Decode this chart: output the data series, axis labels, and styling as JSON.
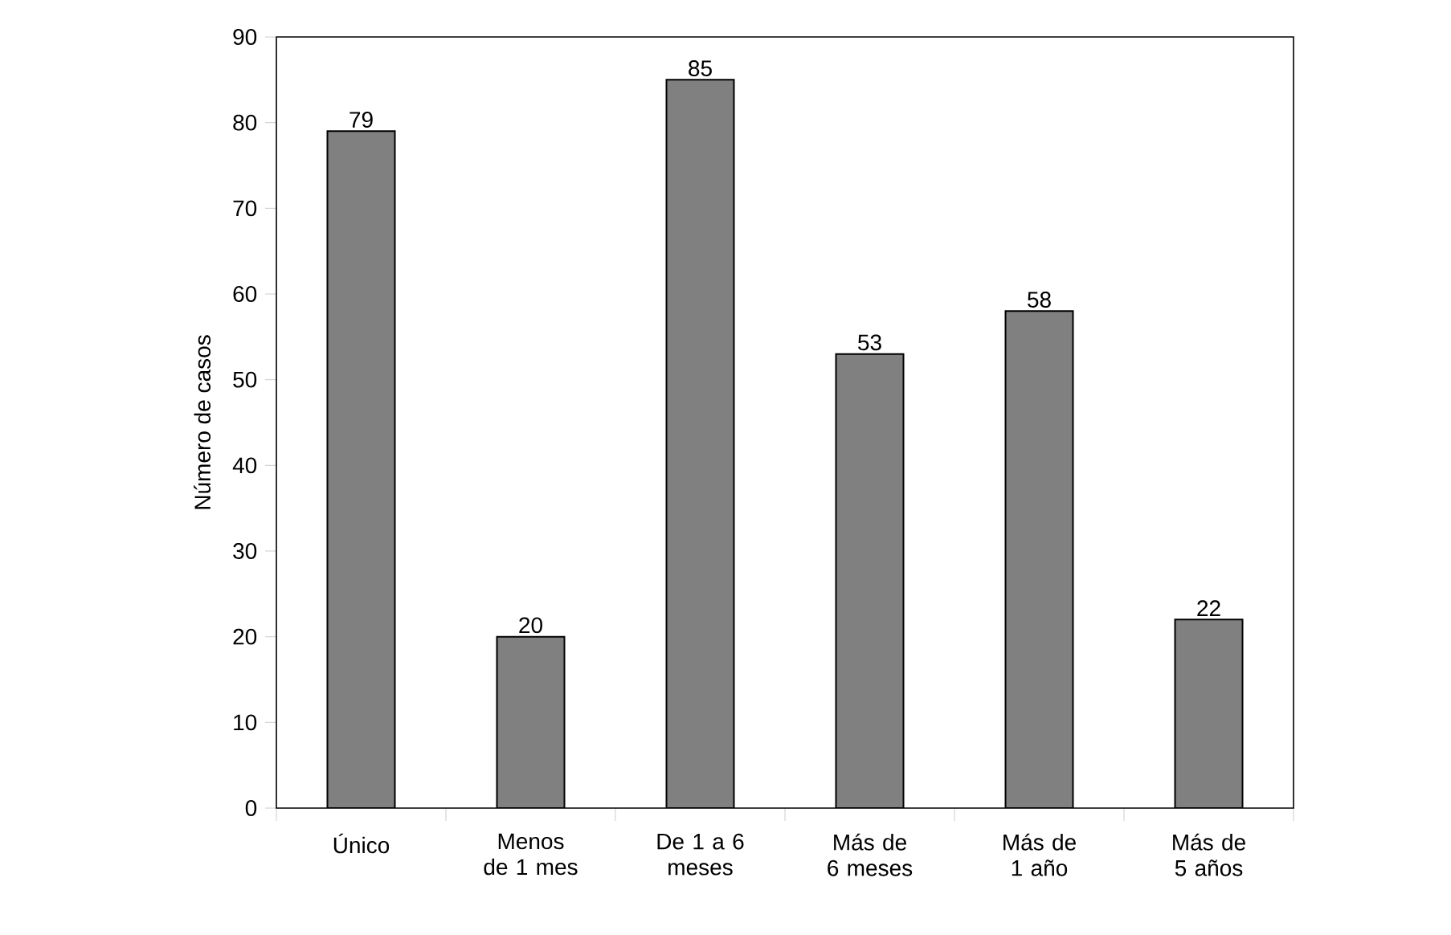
{
  "chart_data": {
    "type": "bar",
    "ylabel": "Número de casos",
    "categories": [
      "Único",
      "Menos de 1 mes",
      "De 1 a 6 meses",
      "Más de 6 meses",
      "Más de 1 año",
      "Más de 5 años"
    ],
    "values": [
      79,
      20,
      85,
      53,
      58,
      22
    ],
    "color": "#808080",
    "ylim": [
      0,
      90
    ],
    "yticks": [
      0,
      10,
      20,
      30,
      40,
      50,
      60,
      70,
      80,
      90
    ],
    "data_labels": true,
    "grid": false
  }
}
